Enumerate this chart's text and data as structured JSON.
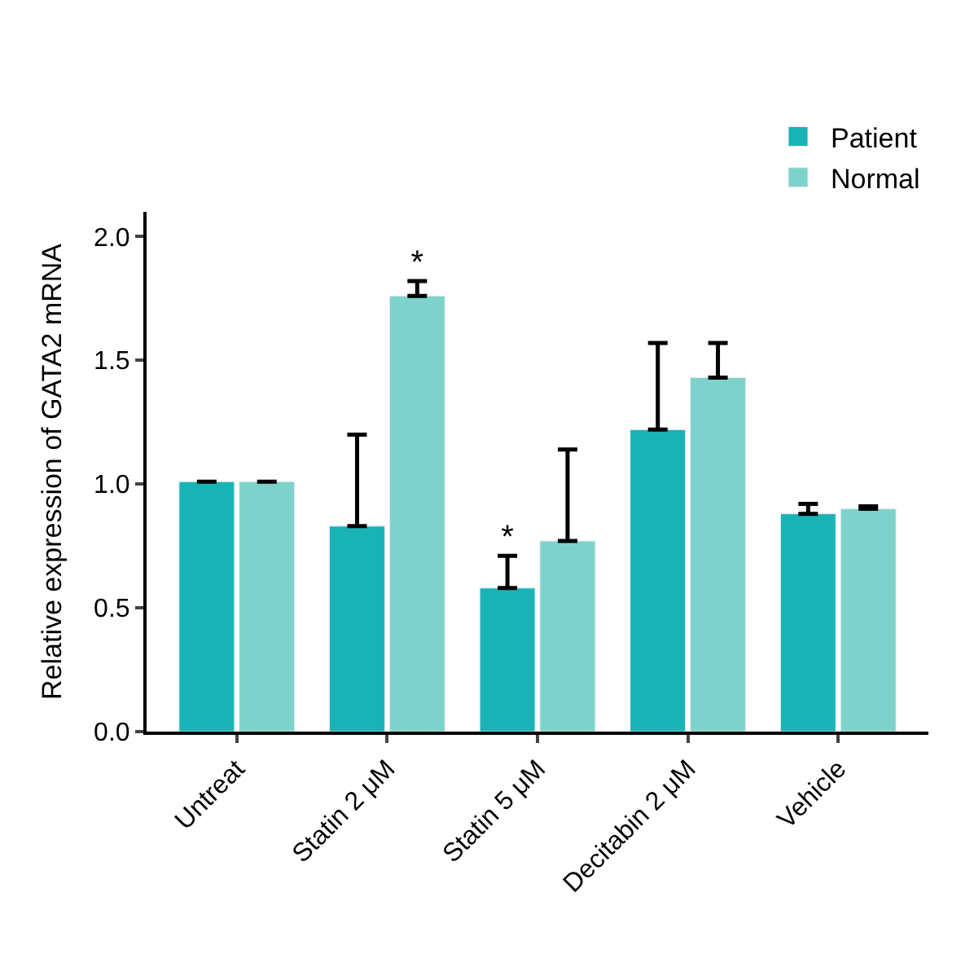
{
  "chart_data": {
    "type": "bar",
    "ylabel": "Relative expression of GATA2 mRNA",
    "categories": [
      "Untreat",
      "Statin 2 μM",
      "Statin 5 μM",
      "Decitabin 2 μM",
      "Vehicle"
    ],
    "series": [
      {
        "name": "Patient",
        "color": "#1ab3b5",
        "values": [
          1.01,
          0.83,
          0.58,
          1.22,
          0.88
        ],
        "errors": [
          null,
          [
            0.83,
            1.2
          ],
          [
            0.58,
            0.71
          ],
          [
            1.22,
            1.57
          ],
          [
            0.88,
            0.92
          ]
        ],
        "value_labels": [
          null,
          null,
          "*",
          null,
          null
        ]
      },
      {
        "name": "Normal",
        "color": "#7dd3cb",
        "values": [
          1.01,
          1.76,
          0.77,
          1.43,
          0.9
        ],
        "errors": [
          null,
          [
            1.76,
            1.82
          ],
          [
            0.77,
            1.14
          ],
          [
            1.43,
            1.57
          ],
          [
            0.9,
            0.91
          ]
        ],
        "value_labels": [
          null,
          "*",
          null,
          null,
          null
        ]
      }
    ],
    "ylim": [
      0,
      2.1
    ],
    "yticks": [
      {
        "value": 0,
        "label": "0.0"
      },
      {
        "value": 0.5,
        "label": "0.5"
      },
      {
        "value": 1,
        "label": "1.0"
      },
      {
        "value": 1.5,
        "label": "1.5"
      },
      {
        "value": 2,
        "label": "2.0"
      }
    ],
    "legend": "top right"
  }
}
